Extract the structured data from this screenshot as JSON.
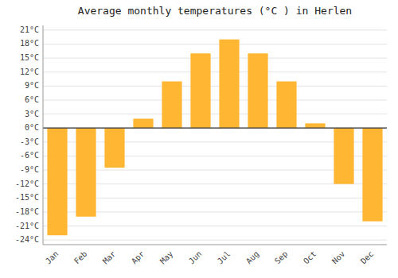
{
  "chart_data": {
    "type": "bar",
    "title": "Average monthly temperatures (°C ) in Herlen",
    "categories": [
      "Jan",
      "Feb",
      "Mar",
      "Apr",
      "May",
      "Jun",
      "Jul",
      "Aug",
      "Sep",
      "Oct",
      "Nov",
      "Dec"
    ],
    "values": [
      -23,
      -19,
      -8.5,
      2,
      10,
      16,
      19,
      16,
      10,
      1,
      -12,
      -20
    ],
    "color": "#FFB733",
    "ylim": [
      -25,
      22
    ],
    "yticks": [
      {
        "value": -24,
        "label": "-24°C"
      },
      {
        "value": -21,
        "label": "-21°C"
      },
      {
        "value": -18,
        "label": "-18°C"
      },
      {
        "value": -15,
        "label": "-15°C"
      },
      {
        "value": -12,
        "label": "-12°C"
      },
      {
        "value": -9,
        "label": "-9°C"
      },
      {
        "value": -6,
        "label": "-6°C"
      },
      {
        "value": -3,
        "label": "-3°C"
      },
      {
        "value": 0,
        "label": "0°C"
      },
      {
        "value": 3,
        "label": "3°C"
      },
      {
        "value": 6,
        "label": "6°C"
      },
      {
        "value": 9,
        "label": "9°C"
      },
      {
        "value": 12,
        "label": "12°C"
      },
      {
        "value": 15,
        "label": "15°C"
      },
      {
        "value": 18,
        "label": "18°C"
      },
      {
        "value": 21,
        "label": "21°C"
      }
    ],
    "grid": true
  }
}
